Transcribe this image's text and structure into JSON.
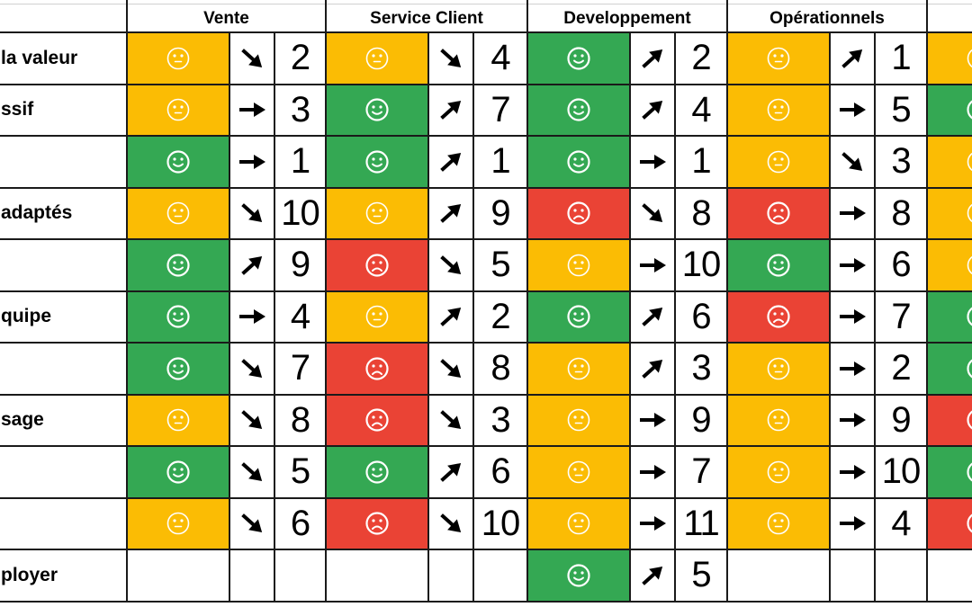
{
  "colors": {
    "good": "#34a853",
    "neutral": "#fbbc04",
    "bad": "#ea4335",
    "face": "#ffffff",
    "arrow": "#000000"
  },
  "columns": [
    {
      "name": "Vente"
    },
    {
      "name": "Service Client"
    },
    {
      "name": "Developpement"
    },
    {
      "name": "Opérationnels"
    },
    {
      "name": ""
    }
  ],
  "rows": [
    {
      "label": "la valeur",
      "cells": [
        {
          "mood": "neutral",
          "trend": "down",
          "value": "2"
        },
        {
          "mood": "neutral",
          "trend": "down",
          "value": "4"
        },
        {
          "mood": "good",
          "trend": "up",
          "value": "2"
        },
        {
          "mood": "neutral",
          "trend": "up",
          "value": "1"
        },
        {
          "mood": "neutral"
        }
      ]
    },
    {
      "label": "ssif",
      "cells": [
        {
          "mood": "neutral",
          "trend": "flat",
          "value": "3"
        },
        {
          "mood": "good",
          "trend": "up",
          "value": "7"
        },
        {
          "mood": "good",
          "trend": "up",
          "value": "4"
        },
        {
          "mood": "neutral",
          "trend": "flat",
          "value": "5"
        },
        {
          "mood": "good"
        }
      ]
    },
    {
      "label": "",
      "cells": [
        {
          "mood": "good",
          "trend": "flat",
          "value": "1"
        },
        {
          "mood": "good",
          "trend": "up",
          "value": "1"
        },
        {
          "mood": "good",
          "trend": "flat",
          "value": "1"
        },
        {
          "mood": "neutral",
          "trend": "down",
          "value": "3"
        },
        {
          "mood": "neutral"
        }
      ]
    },
    {
      "label": "adaptés",
      "cells": [
        {
          "mood": "neutral",
          "trend": "down",
          "value": "10"
        },
        {
          "mood": "neutral",
          "trend": "up",
          "value": "9"
        },
        {
          "mood": "bad",
          "trend": "down",
          "value": "8"
        },
        {
          "mood": "bad",
          "trend": "flat",
          "value": "8"
        },
        {
          "mood": "neutral"
        }
      ]
    },
    {
      "label": "",
      "cells": [
        {
          "mood": "good",
          "trend": "up",
          "value": "9"
        },
        {
          "mood": "bad",
          "trend": "down",
          "value": "5"
        },
        {
          "mood": "neutral",
          "trend": "flat",
          "value": "10"
        },
        {
          "mood": "good",
          "trend": "flat",
          "value": "6"
        },
        {
          "mood": "neutral"
        }
      ]
    },
    {
      "label": "quipe",
      "cells": [
        {
          "mood": "good",
          "trend": "flat",
          "value": "4"
        },
        {
          "mood": "neutral",
          "trend": "up",
          "value": "2"
        },
        {
          "mood": "good",
          "trend": "up",
          "value": "6"
        },
        {
          "mood": "bad",
          "trend": "flat",
          "value": "7"
        },
        {
          "mood": "good"
        }
      ]
    },
    {
      "label": "",
      "cells": [
        {
          "mood": "good",
          "trend": "down",
          "value": "7"
        },
        {
          "mood": "bad",
          "trend": "down",
          "value": "8"
        },
        {
          "mood": "neutral",
          "trend": "up",
          "value": "3"
        },
        {
          "mood": "neutral",
          "trend": "flat",
          "value": "2"
        },
        {
          "mood": "good"
        }
      ]
    },
    {
      "label": "sage",
      "cells": [
        {
          "mood": "neutral",
          "trend": "down",
          "value": "8"
        },
        {
          "mood": "bad",
          "trend": "down",
          "value": "3"
        },
        {
          "mood": "neutral",
          "trend": "flat",
          "value": "9"
        },
        {
          "mood": "neutral",
          "trend": "flat",
          "value": "9"
        },
        {
          "mood": "bad"
        }
      ]
    },
    {
      "label": "",
      "cells": [
        {
          "mood": "good",
          "trend": "down",
          "value": "5"
        },
        {
          "mood": "good",
          "trend": "up",
          "value": "6"
        },
        {
          "mood": "neutral",
          "trend": "flat",
          "value": "7"
        },
        {
          "mood": "neutral",
          "trend": "flat",
          "value": "10"
        },
        {
          "mood": "good"
        }
      ]
    },
    {
      "label": "",
      "cells": [
        {
          "mood": "neutral",
          "trend": "down",
          "value": "6"
        },
        {
          "mood": "bad",
          "trend": "down",
          "value": "10"
        },
        {
          "mood": "neutral",
          "trend": "flat",
          "value": "11"
        },
        {
          "mood": "neutral",
          "trend": "flat",
          "value": "4"
        },
        {
          "mood": "bad"
        }
      ]
    },
    {
      "label": "ployer",
      "cells": [
        {
          "mood": ""
        },
        {
          "mood": ""
        },
        {
          "mood": "good",
          "trend": "up",
          "value": "5"
        },
        {
          "mood": ""
        },
        {
          "mood": ""
        }
      ]
    }
  ]
}
